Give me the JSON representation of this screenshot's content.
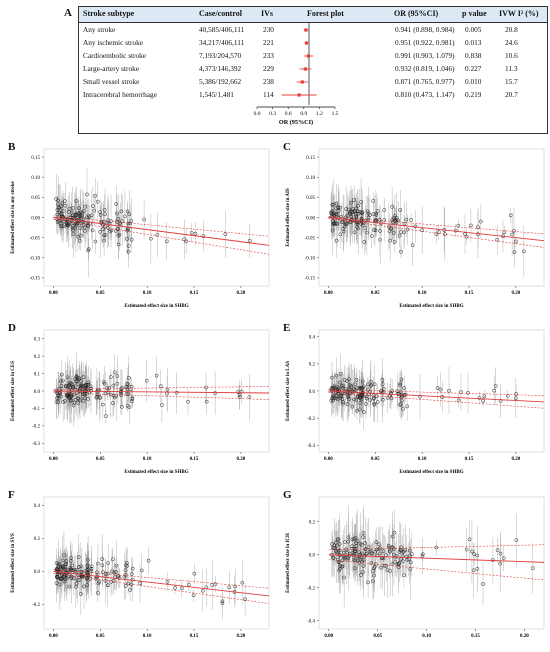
{
  "table": {
    "letter": "A",
    "headers": {
      "subtype": "Stroke subtype",
      "cases": "Case/control",
      "ivs": "IVs",
      "forest": "Forest plot",
      "or": "OR (95%CI)",
      "p": "p value",
      "i2": "IVW I² (%)"
    },
    "rows": [
      {
        "subtype": "Any stroke",
        "cases": "40,585/406,111",
        "ivs": "230",
        "or_text": "0.941 (0.898, 0.984)",
        "p": "0.005",
        "i2": "20.8"
      },
      {
        "subtype": "Any ischemic stroke",
        "cases": "34,217/406,111",
        "ivs": "221",
        "or_text": "0.951 (0.922, 0.981)",
        "p": "0.013",
        "i2": "24.6"
      },
      {
        "subtype": "Cardioembolic stroke",
        "cases": "7,193/204,570",
        "ivs": "233",
        "or_text": "0.991 (0.903, 1.079)",
        "p": "0.838",
        "i2": "10.6"
      },
      {
        "subtype": "Large-artery stroke",
        "cases": "4,373/146,392",
        "ivs": "229",
        "or_text": "0.932 (0.819, 1.046)",
        "p": "0.227",
        "i2": "11.3"
      },
      {
        "subtype": "Small vessel stroke",
        "cases": "5,386/192,662",
        "ivs": "238",
        "or_text": "0.871 (0.765, 0.977)",
        "p": "0.010",
        "i2": "15.7"
      },
      {
        "subtype": "Intracerebral hemorrhage",
        "cases": "1,545/1,481",
        "ivs": "114",
        "or_text": "0.810 (0.473, 1.147)",
        "p": "0.219",
        "i2": "20.7"
      }
    ],
    "forest_axis_label": "OR (95%CI)",
    "forest_ticks": [
      "0.0",
      "0.3",
      "0.6",
      "0.9",
      "1.2",
      "1.5"
    ]
  },
  "chart_data": [
    {
      "type": "table",
      "title": "",
      "forest": {
        "or": [
          0.941,
          0.951,
          0.991,
          0.932,
          0.871,
          0.81
        ],
        "lower": [
          0.898,
          0.922,
          0.903,
          0.819,
          0.765,
          0.473
        ],
        "upper": [
          0.984,
          0.981,
          1.079,
          1.046,
          0.977,
          1.147
        ],
        "xlim": [
          0.0,
          1.5
        ],
        "reference_line": 1.0,
        "color": "#e8413c"
      }
    },
    {
      "type": "scatter",
      "letter": "B",
      "xlabel": "Estimated effect size in SHBG",
      "ylabel": "Estimated effect size in any stroke",
      "xlim": [
        -0.01,
        0.23
      ],
      "ylim": [
        -0.17,
        0.17
      ],
      "xticks": [
        0.0,
        0.05,
        0.1,
        0.15,
        0.2
      ],
      "xtick_labels": [
        "0.00",
        "0.05",
        "0.10",
        "0.15",
        "0.20"
      ],
      "yticks": [
        -0.15,
        -0.1,
        -0.05,
        0.0,
        0.05,
        0.1,
        0.15
      ],
      "ytick_labels": [
        "-0.15",
        "-0.10",
        "-0.05",
        "0.00",
        "0.05",
        "0.10",
        "0.15"
      ],
      "slope": -0.3,
      "band": 0.004,
      "band_growth": 0.08,
      "spread": 0.025,
      "err": 0.06,
      "seed": 11
    },
    {
      "type": "scatter",
      "letter": "C",
      "xlabel": "Estimated effect size in SHBG",
      "ylabel": "Estimated effect size in AIS",
      "xlim": [
        -0.01,
        0.23
      ],
      "ylim": [
        -0.17,
        0.17
      ],
      "xticks": [
        0.0,
        0.05,
        0.1,
        0.15,
        0.2
      ],
      "xtick_labels": [
        "0.00",
        "0.05",
        "0.10",
        "0.15",
        "0.20"
      ],
      "yticks": [
        -0.15,
        -0.1,
        -0.05,
        0.0,
        0.05,
        0.1,
        0.15
      ],
      "ytick_labels": [
        "-0.15",
        "-0.10",
        "-0.05",
        "0.00",
        "0.05",
        "0.10",
        "0.15"
      ],
      "slope": -0.25,
      "band": 0.003,
      "band_growth": 0.06,
      "spread": 0.022,
      "err": 0.06,
      "seed": 23
    },
    {
      "type": "scatter",
      "letter": "D",
      "xlabel": "Estimated effect size in SHBG",
      "ylabel": "Estimated effect size in CES",
      "xlim": [
        -0.01,
        0.23
      ],
      "ylim": [
        -0.35,
        0.35
      ],
      "xticks": [
        0.0,
        0.05,
        0.1,
        0.15,
        0.2
      ],
      "xtick_labels": [
        "0.00",
        "0.05",
        "0.10",
        "0.15",
        "0.20"
      ],
      "yticks": [
        -0.3,
        -0.2,
        -0.1,
        0.0,
        0.1,
        0.2,
        0.3
      ],
      "ytick_labels": [
        "-0.3",
        "-0.2",
        "-0.1",
        "0.0",
        "0.1",
        "0.2",
        "0.3"
      ],
      "slope": -0.05,
      "band": 0.01,
      "band_growth": 0.12,
      "spread": 0.05,
      "err": 0.13,
      "seed": 37
    },
    {
      "type": "scatter",
      "letter": "E",
      "xlabel": "Estimated effect size in SHBG",
      "ylabel": "Estimated effect size in LAS",
      "xlim": [
        -0.01,
        0.23
      ],
      "ylim": [
        -0.45,
        0.45
      ],
      "xticks": [
        0.0,
        0.05,
        0.1,
        0.15,
        0.2
      ],
      "xtick_labels": [
        "0.00",
        "0.05",
        "0.10",
        "0.15",
        "0.20"
      ],
      "yticks": [
        -0.4,
        -0.2,
        0.0,
        0.2,
        0.4
      ],
      "ytick_labels": [
        "-0.4",
        "-0.2",
        "0.0",
        "0.2",
        "0.4"
      ],
      "slope": -0.35,
      "band": 0.012,
      "band_growth": 0.15,
      "spread": 0.06,
      "err": 0.16,
      "seed": 51
    },
    {
      "type": "scatter",
      "letter": "F",
      "xlabel": "Estimated effect size in SHBG",
      "ylabel": "Estimated effect size in SVS",
      "xlim": [
        -0.01,
        0.23
      ],
      "ylim": [
        -0.35,
        0.45
      ],
      "xticks": [
        0.0,
        0.05,
        0.1,
        0.15,
        0.2
      ],
      "xtick_labels": [
        "0.00",
        "0.05",
        "0.10",
        "0.15",
        "0.20"
      ],
      "yticks": [
        -0.2,
        0.0,
        0.2,
        0.4
      ],
      "ytick_labels": [
        "-0.2",
        "0.0",
        "0.2",
        "0.4"
      ],
      "slope": -0.65,
      "band": 0.012,
      "band_growth": 0.15,
      "spread": 0.05,
      "err": 0.14,
      "seed": 67
    },
    {
      "type": "scatter",
      "letter": "G",
      "xlabel": "Estimated effect size in SHBG",
      "ylabel": "Estimated effect size in ICH",
      "xlim": [
        -0.01,
        0.22
      ],
      "ylim": [
        -0.45,
        0.35
      ],
      "xticks": [
        0.0,
        0.05,
        0.1,
        0.15,
        0.2
      ],
      "xtick_labels": [
        "0.00",
        "0.05",
        "0.10",
        "0.15",
        "0.20"
      ],
      "yticks": [
        -0.4,
        -0.2,
        0.0,
        0.2
      ],
      "ytick_labels": [
        "-0.4",
        "-0.2",
        "0.0",
        "0.2"
      ],
      "slope": -0.21,
      "band": 0.03,
      "band_growth": 0.35,
      "spread": 0.07,
      "err": 0.18,
      "seed": 83
    }
  ]
}
